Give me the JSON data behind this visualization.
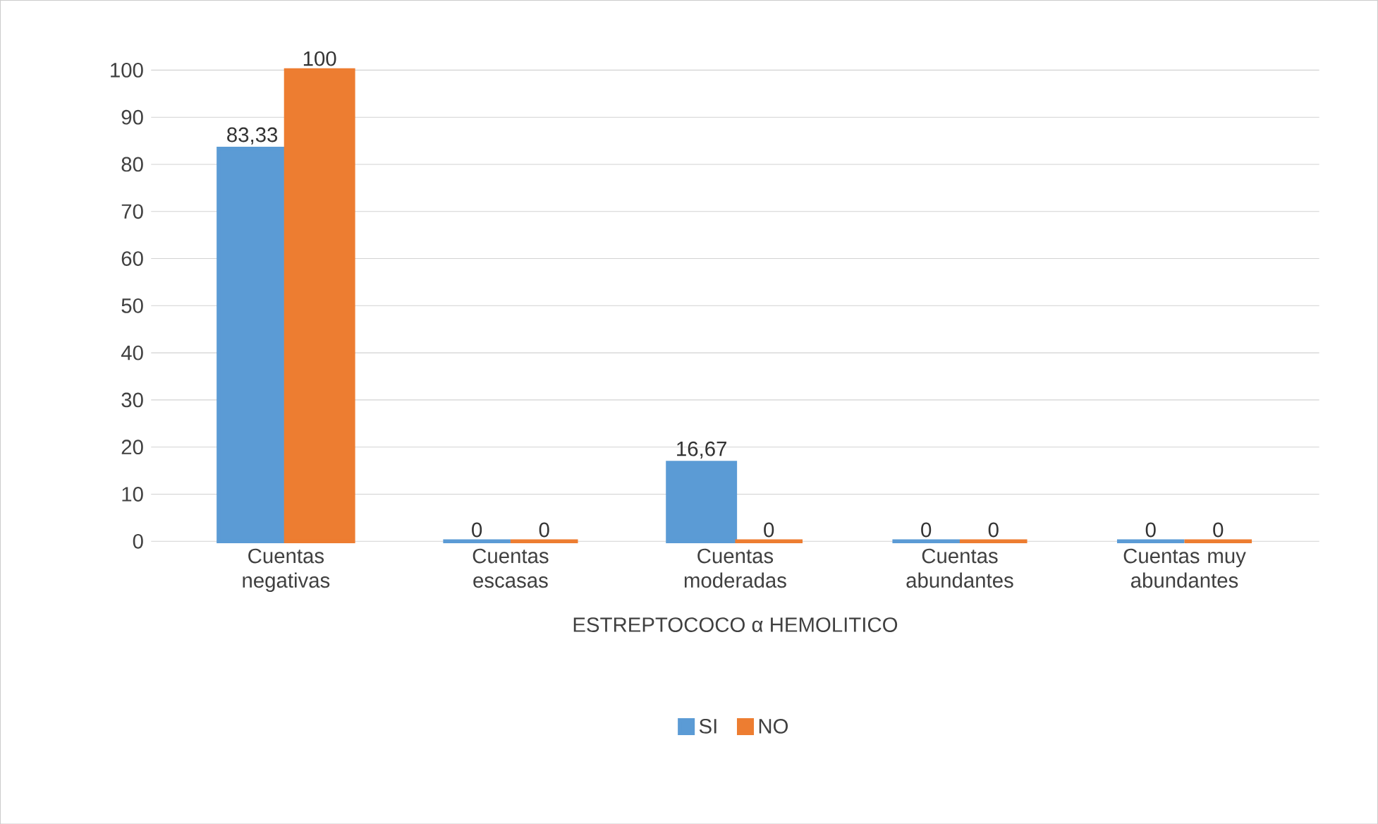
{
  "chart_data": {
    "type": "bar",
    "xlabel": "ESTREPTOCOCO α HEMOLITICO",
    "categories": [
      "Cuentas negativas",
      "Cuentas escasas",
      "Cuentas moderadas",
      "Cuentas abundantes",
      "Cuentas muy abundantes"
    ],
    "series": [
      {
        "name": "SI",
        "color": "#5b9bd5",
        "values": [
          83.33,
          0,
          16.67,
          0,
          0
        ],
        "value_labels": [
          "83,33",
          "0",
          "16,67",
          "0",
          "0"
        ]
      },
      {
        "name": "NO",
        "color": "#ed7d31",
        "values": [
          100,
          0,
          0,
          0,
          0
        ],
        "value_labels": [
          "100",
          "0",
          "0",
          "0",
          "0"
        ]
      }
    ],
    "ylim": [
      0,
      100
    ],
    "yticks": [
      0,
      10,
      20,
      30,
      40,
      50,
      60,
      70,
      80,
      90,
      100
    ],
    "grid": "y",
    "legend": "bottom"
  }
}
